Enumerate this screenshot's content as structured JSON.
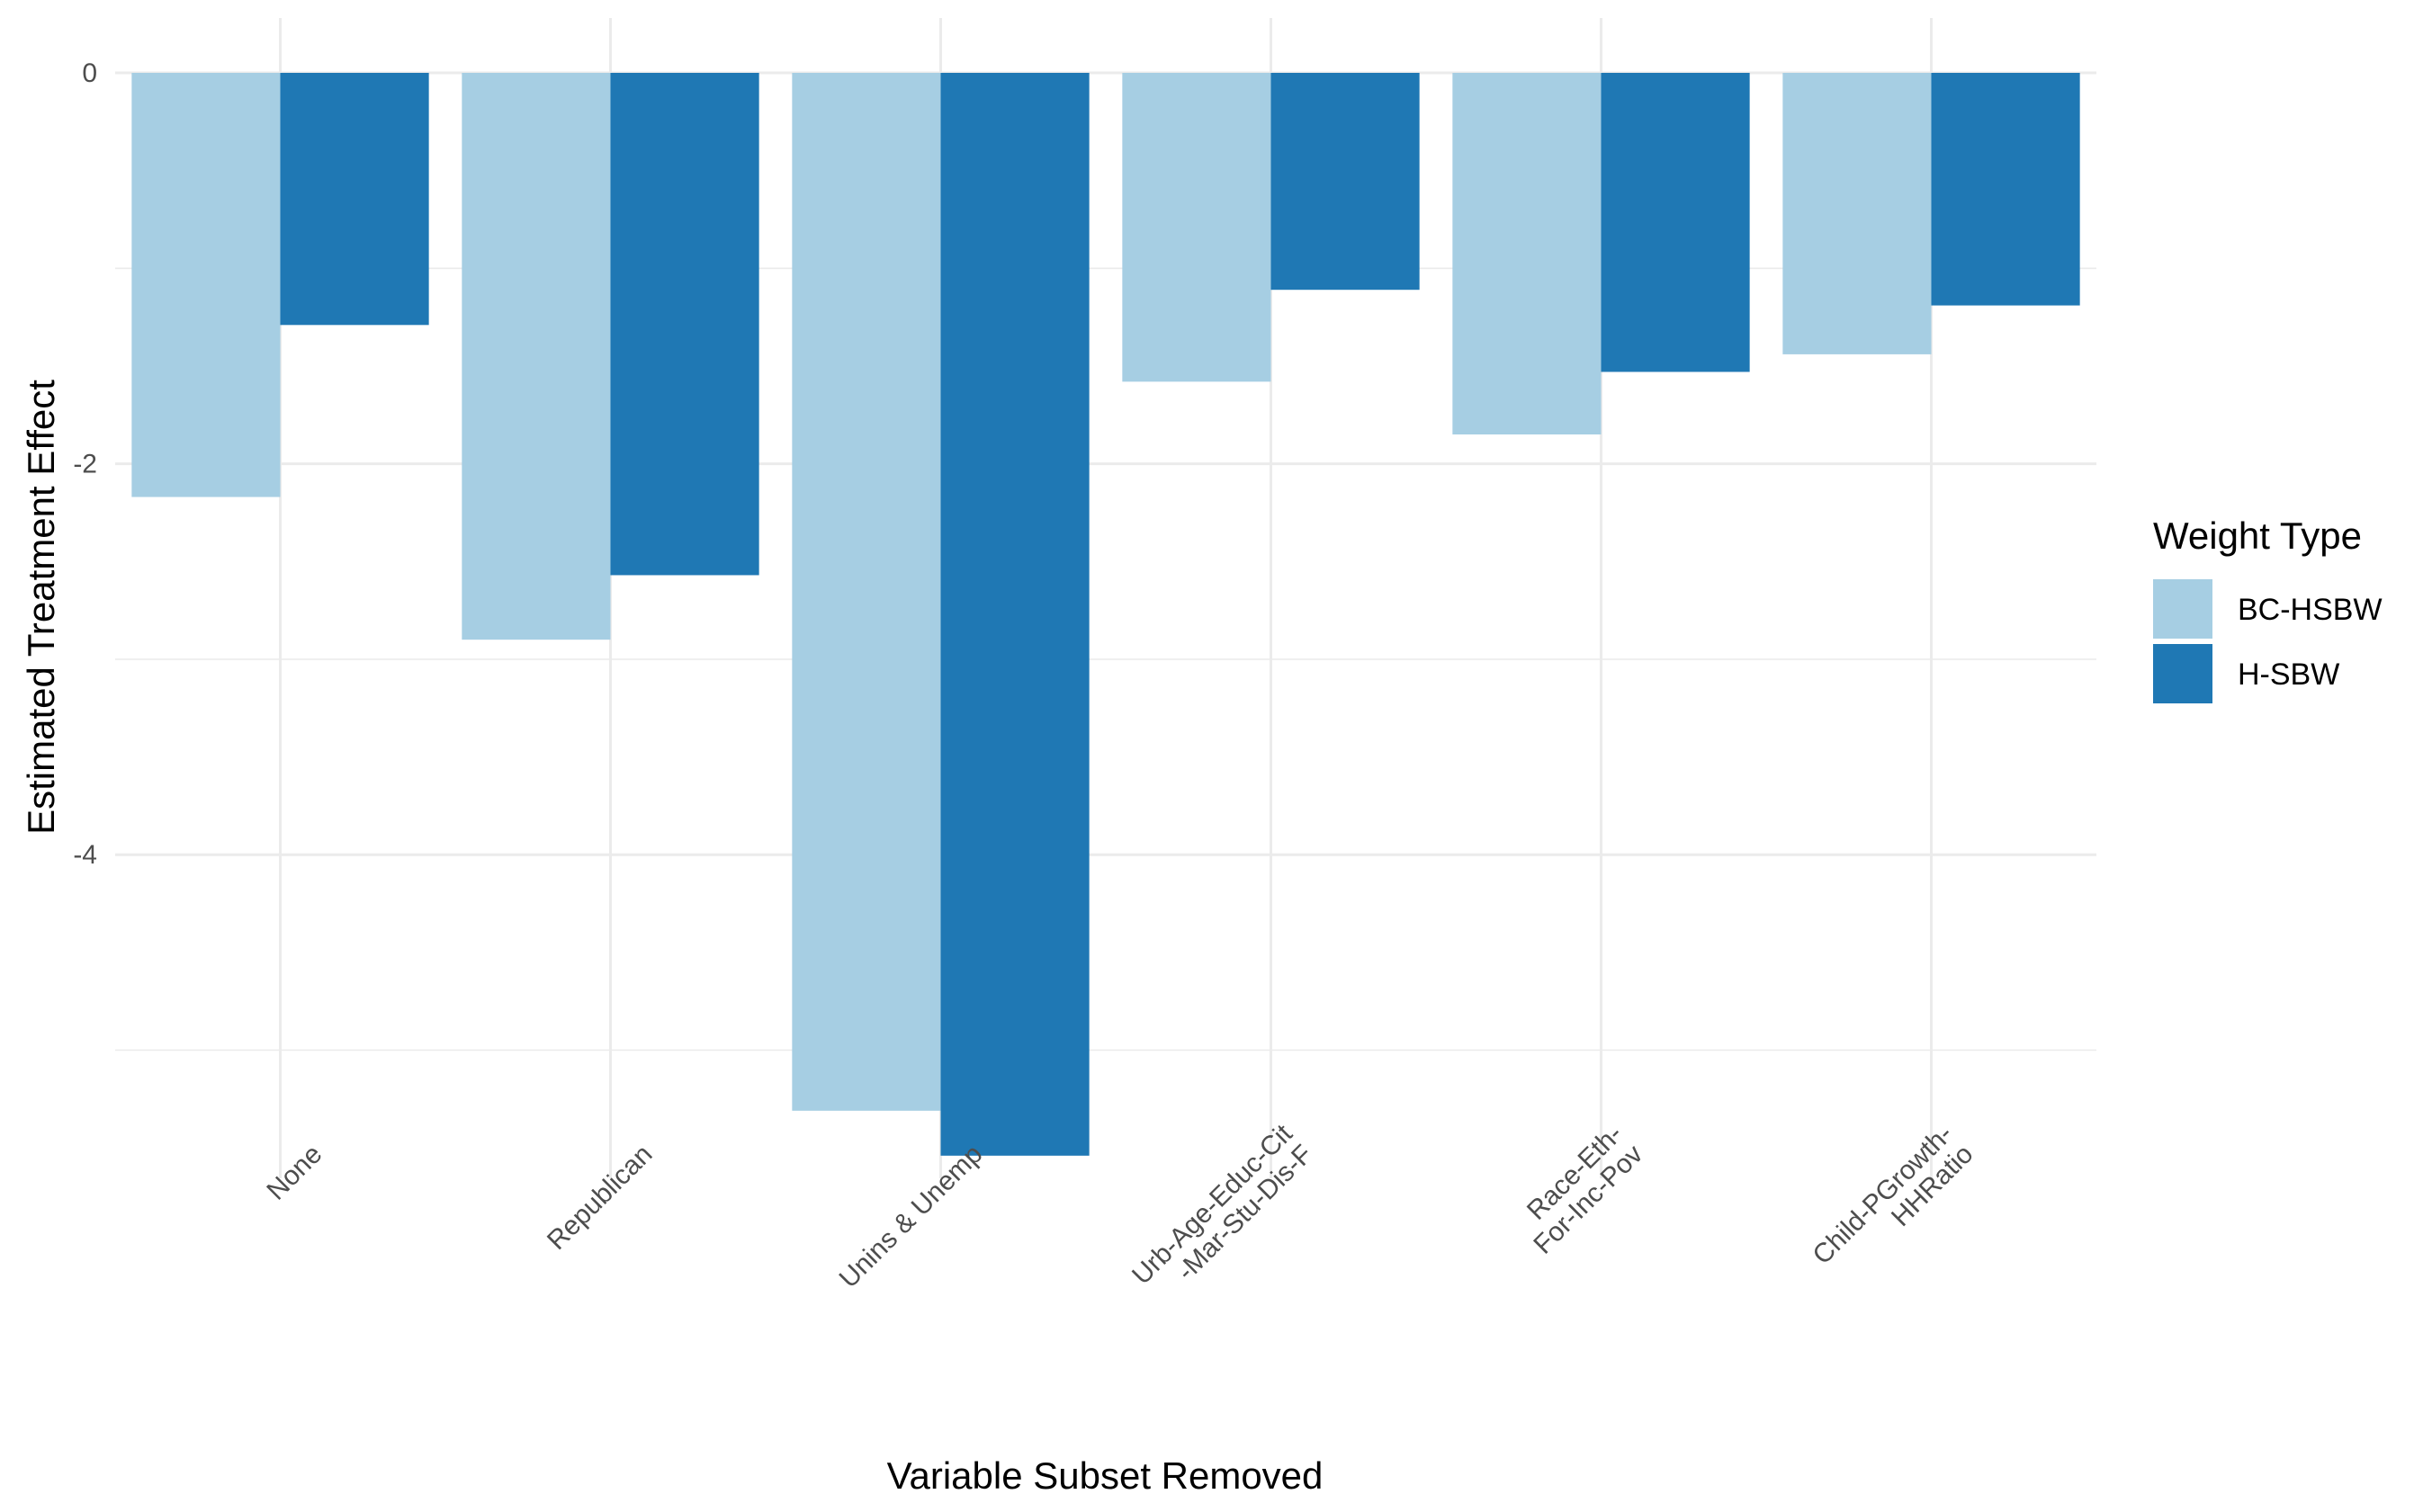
{
  "chart_data": {
    "type": "bar",
    "xlabel": "Variable Subset Removed",
    "ylabel": "Estimated Treatment Effect",
    "categories": [
      [
        "None"
      ],
      [
        "Republican"
      ],
      [
        "Unins & Unemp"
      ],
      [
        "Urb-Age-Educ-Cit",
        "-Mar-Stu-Dis-F"
      ],
      [
        "Race-Eth-",
        "For-Inc-Pov"
      ],
      [
        "Child-PGrowth-",
        "HHRatio"
      ]
    ],
    "series": [
      {
        "name": "BC-HSBW",
        "color": "#a6cee3",
        "values": [
          -2.17,
          -2.9,
          -5.31,
          -1.58,
          -1.85,
          -1.44
        ]
      },
      {
        "name": "H-SBW",
        "color": "#1f78b4",
        "values": [
          -1.29,
          -2.57,
          -5.54,
          -1.11,
          -1.53,
          -1.19
        ]
      }
    ],
    "y_ticks": [
      0,
      -2,
      -4
    ],
    "y_tick_labels": [
      "0",
      "-2",
      "-4"
    ],
    "ylim": [
      -5.6,
      0.28
    ],
    "grid": true,
    "legend": {
      "title": "Weight Type",
      "position": "right"
    }
  }
}
